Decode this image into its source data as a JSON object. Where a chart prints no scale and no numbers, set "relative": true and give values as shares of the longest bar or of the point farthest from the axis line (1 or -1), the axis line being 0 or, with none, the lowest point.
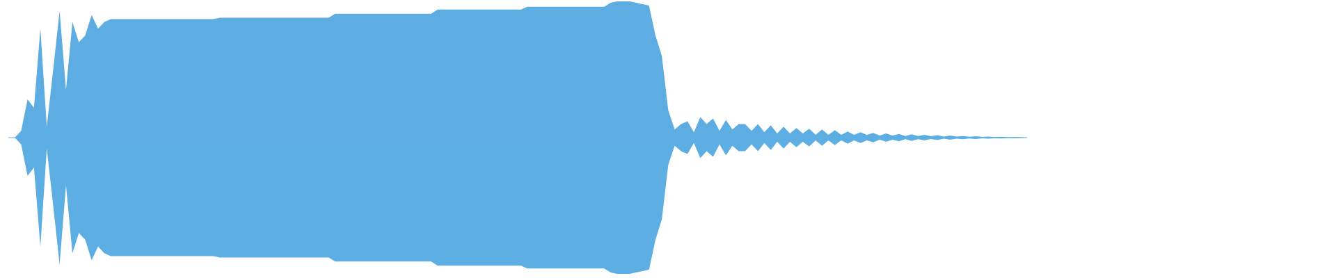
{
  "chart_data": {
    "type": "area",
    "relative": true,
    "categories": [
      null,
      null,
      null,
      null,
      null,
      null,
      null,
      null,
      null,
      null,
      null,
      null,
      null,
      null,
      null,
      null,
      null,
      null,
      null,
      null,
      null,
      null,
      null,
      null,
      null,
      null,
      null,
      null,
      null,
      null,
      null,
      null,
      null,
      null,
      null,
      null,
      null,
      null,
      null,
      null,
      null,
      null,
      null,
      null,
      null,
      null,
      null,
      null,
      null,
      null,
      null,
      null,
      null,
      null,
      null,
      null,
      null,
      null,
      null,
      null,
      null,
      null,
      null,
      null,
      null,
      null,
      null,
      null,
      null,
      null,
      null,
      null,
      null,
      null,
      null,
      null,
      null,
      null,
      null,
      null,
      null,
      null,
      null,
      null,
      null,
      null,
      null,
      null,
      null,
      null,
      null,
      null,
      null,
      null,
      null,
      null,
      null,
      null,
      null,
      null,
      null,
      null,
      null,
      null,
      null,
      null,
      null,
      null,
      null,
      null,
      null,
      null,
      null,
      null,
      null,
      null,
      null,
      null,
      null,
      null,
      null,
      null,
      null,
      null,
      null,
      null,
      null,
      null,
      null,
      null,
      null,
      null,
      null,
      null,
      null,
      null,
      null,
      null,
      null,
      null,
      null,
      null,
      null,
      null,
      null,
      null,
      null,
      null,
      null,
      null,
      null,
      null,
      null,
      null,
      null,
      null,
      null,
      null,
      null,
      null
    ],
    "series": [
      {
        "color": "#5dade2",
        "values": [
          0,
          0,
          0.05,
          0.28,
          0.22,
          0.8,
          0.08,
          0.5,
          0.93,
          0.35,
          0.85,
          0.7,
          0.75,
          0.9,
          0.8,
          0.85,
          0.87,
          0.87,
          0.87,
          0.87,
          0.87,
          0.87,
          0.87,
          0.87,
          0.87,
          0.87,
          0.87,
          0.87,
          0.87,
          0.87,
          0.87,
          0.87,
          0.87,
          0.88,
          0.88,
          0.88,
          0.88,
          0.88,
          0.88,
          0.88,
          0.88,
          0.88,
          0.88,
          0.88,
          0.88,
          0.88,
          0.88,
          0.88,
          0.88,
          0.88,
          0.88,
          0.91,
          0.91,
          0.91,
          0.91,
          0.91,
          0.91,
          0.91,
          0.91,
          0.91,
          0.91,
          0.91,
          0.91,
          0.91,
          0.91,
          0.91,
          0.91,
          0.94,
          0.94,
          0.94,
          0.94,
          0.94,
          0.94,
          0.94,
          0.94,
          0.94,
          0.94,
          0.94,
          0.94,
          0.94,
          0.94,
          0.96,
          0.96,
          0.96,
          0.96,
          0.96,
          0.96,
          0.96,
          0.96,
          0.96,
          0.96,
          0.96,
          0.96,
          0.96,
          0.99,
          1,
          1,
          1,
          0.99,
          0.98,
          0.97,
          0.75,
          0.6,
          0.2,
          0.06,
          0.1,
          0.12,
          0.04,
          0.15,
          0.1,
          0.14,
          0.05,
          0.13,
          0.06,
          0.1,
          0.1,
          0.05,
          0.1,
          0.04,
          0.09,
          0.03,
          0.08,
          0.03,
          0.07,
          0.03,
          0.065,
          0.02,
          0.06,
          0.02,
          0.055,
          0.02,
          0.045,
          0.02,
          0.04,
          0.02,
          0.035,
          0.015,
          0.03,
          0.015,
          0.027,
          0.012,
          0.024,
          0.012,
          0.02,
          0.01,
          0.018,
          0.008,
          0.015,
          0.008,
          0.012,
          0.006,
          0.01,
          0.005,
          0.008,
          0.004,
          0.006,
          0.003,
          0.004,
          0.002,
          0
        ]
      },
      {
        "color": "#5daee2",
        "values": [
          0,
          0,
          -0.05,
          -0.28,
          -0.22,
          -0.8,
          -0.08,
          -0.5,
          -0.93,
          -0.35,
          -0.85,
          -0.7,
          -0.75,
          -0.9,
          -0.8,
          -0.85,
          -0.87,
          -0.87,
          -0.87,
          -0.87,
          -0.87,
          -0.87,
          -0.87,
          -0.87,
          -0.87,
          -0.87,
          -0.87,
          -0.87,
          -0.87,
          -0.87,
          -0.87,
          -0.87,
          -0.87,
          -0.88,
          -0.88,
          -0.88,
          -0.88,
          -0.88,
          -0.88,
          -0.88,
          -0.88,
          -0.88,
          -0.88,
          -0.88,
          -0.88,
          -0.88,
          -0.88,
          -0.88,
          -0.88,
          -0.88,
          -0.88,
          -0.91,
          -0.91,
          -0.91,
          -0.91,
          -0.91,
          -0.91,
          -0.91,
          -0.91,
          -0.91,
          -0.91,
          -0.91,
          -0.91,
          -0.91,
          -0.91,
          -0.91,
          -0.91,
          -0.94,
          -0.94,
          -0.94,
          -0.94,
          -0.94,
          -0.94,
          -0.94,
          -0.94,
          -0.94,
          -0.94,
          -0.94,
          -0.94,
          -0.94,
          -0.94,
          -0.96,
          -0.96,
          -0.96,
          -0.96,
          -0.96,
          -0.96,
          -0.96,
          -0.96,
          -0.96,
          -0.96,
          -0.96,
          -0.96,
          -0.96,
          -0.99,
          -1,
          -1,
          -1,
          -0.99,
          -0.98,
          -0.97,
          -0.75,
          -0.6,
          -0.2,
          -0.06,
          -0.1,
          -0.12,
          -0.04,
          -0.15,
          -0.1,
          -0.14,
          -0.05,
          -0.13,
          -0.06,
          -0.1,
          -0.1,
          -0.05,
          -0.1,
          -0.04,
          -0.09,
          -0.03,
          -0.08,
          -0.03,
          -0.07,
          -0.03,
          -0.065,
          -0.02,
          -0.06,
          -0.02,
          -0.055,
          -0.02,
          -0.045,
          -0.02,
          -0.04,
          -0.02,
          -0.035,
          -0.015,
          -0.03,
          -0.015,
          -0.027,
          -0.012,
          -0.024,
          -0.012,
          -0.02,
          -0.01,
          -0.018,
          -0.008,
          -0.015,
          -0.008,
          -0.012,
          -0.006,
          -0.01,
          -0.005,
          -0.008,
          -0.004,
          -0.006,
          -0.003,
          -0.004,
          -0.002,
          0
        ]
      }
    ]
  }
}
